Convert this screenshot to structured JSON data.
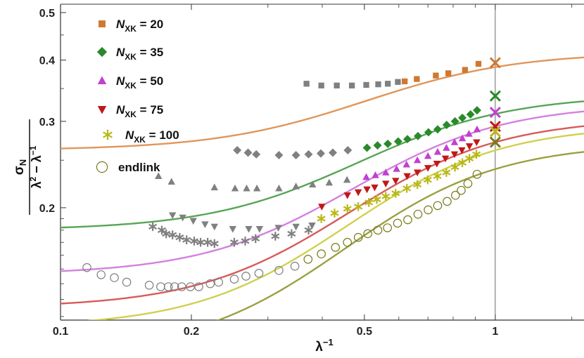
{
  "chart_data": {
    "type": "scatter",
    "xscale": "log",
    "yscale": "log",
    "xlim": [
      0.1,
      1.6
    ],
    "ylim": [
      0.118,
      0.52
    ],
    "xlabel": "λ⁻¹",
    "ylabel": {
      "numerator": "σN",
      "denominator": "λ² − λ⁻¹"
    },
    "x_ticks": [
      {
        "value": 0.1,
        "label": "0.1"
      },
      {
        "value": 0.2,
        "label": "0.2"
      },
      {
        "value": 0.5,
        "label": "0.5"
      },
      {
        "value": 1.0,
        "label": "1"
      }
    ],
    "x_minor_ticks": [
      0.3,
      0.4,
      0.6,
      0.7,
      0.8,
      0.9,
      1.5
    ],
    "y_ticks": [
      {
        "value": 0.2,
        "label": "0.2"
      },
      {
        "value": 0.3,
        "label": "0.3"
      },
      {
        "value": 0.4,
        "label": "0.4"
      },
      {
        "value": 0.5,
        "label": "0.5"
      }
    ],
    "y_minor_ticks": [
      0.12,
      0.13,
      0.14,
      0.15,
      0.16,
      0.17,
      0.18,
      0.19,
      0.25,
      0.35,
      0.45
    ],
    "vline_x": 1.0,
    "gray_color": "#808080",
    "series": [
      {
        "name": "N_XK = 20",
        "legend": {
          "prefix": "N",
          "sub": "XK",
          "suffix": " = 20"
        },
        "color": "#d07830",
        "marker": "square",
        "fit_color": "#e0965a",
        "fit": {
          "a": 0.262,
          "b": 0.415,
          "c": 2.5
        },
        "gray_points": [
          [
            0.368,
            0.358
          ],
          [
            0.398,
            0.355
          ],
          [
            0.432,
            0.355
          ],
          [
            0.468,
            0.355
          ],
          [
            0.505,
            0.356
          ],
          [
            0.538,
            0.357
          ],
          [
            0.566,
            0.358
          ],
          [
            0.597,
            0.361
          ]
        ],
        "colored_points": [
          [
            0.619,
            0.362
          ],
          [
            0.66,
            0.366
          ],
          [
            0.73,
            0.372
          ],
          [
            0.78,
            0.376
          ],
          [
            0.852,
            0.382
          ],
          [
            0.915,
            0.393
          ]
        ],
        "end_point": [
          1.0,
          0.395
        ]
      },
      {
        "name": "N_XK = 35",
        "legend": {
          "prefix": "N",
          "sub": "XK",
          "suffix": " = 35"
        },
        "color": "#2a8a2a",
        "marker": "diamond",
        "fit_color": "#56a656",
        "fit": {
          "a": 0.18,
          "b": 0.34,
          "c": 2.5
        },
        "gray_points": [
          [
            0.255,
            0.262
          ],
          [
            0.27,
            0.259
          ],
          [
            0.282,
            0.257
          ],
          [
            0.318,
            0.256
          ],
          [
            0.348,
            0.256
          ],
          [
            0.372,
            0.257
          ],
          [
            0.397,
            0.258
          ],
          [
            0.423,
            0.259
          ],
          [
            0.458,
            0.262
          ]
        ],
        "colored_points": [
          [
            0.507,
            0.265
          ],
          [
            0.536,
            0.268
          ],
          [
            0.566,
            0.27
          ],
          [
            0.598,
            0.273
          ],
          [
            0.628,
            0.276
          ],
          [
            0.664,
            0.28
          ],
          [
            0.702,
            0.285
          ],
          [
            0.737,
            0.289
          ],
          [
            0.773,
            0.295
          ],
          [
            0.808,
            0.3
          ],
          [
            0.84,
            0.305
          ],
          [
            0.877,
            0.31
          ],
          [
            0.908,
            0.316
          ]
        ],
        "end_point": [
          1.0,
          0.338
        ]
      },
      {
        "name": "N_XK = 50",
        "legend": {
          "prefix": "N",
          "sub": "XK",
          "suffix": " = 50"
        },
        "color": "#c040d0",
        "marker": "triangle-up",
        "fit_color": "#d480e0",
        "fit": {
          "a": 0.146,
          "b": 0.326,
          "c": 2.5
        },
        "gray_points": [
          [
            0.168,
            0.232
          ],
          [
            0.18,
            0.226
          ],
          [
            0.226,
            0.22
          ],
          [
            0.252,
            0.219
          ],
          [
            0.268,
            0.219
          ],
          [
            0.283,
            0.219
          ],
          [
            0.318,
            0.219
          ],
          [
            0.348,
            0.221
          ],
          [
            0.38,
            0.223
          ],
          [
            0.415,
            0.225
          ],
          [
            0.456,
            0.228
          ]
        ],
        "colored_points": [
          [
            0.505,
            0.231
          ],
          [
            0.53,
            0.233
          ],
          [
            0.56,
            0.236
          ],
          [
            0.593,
            0.24
          ],
          [
            0.625,
            0.245
          ],
          [
            0.662,
            0.25
          ],
          [
            0.7,
            0.255
          ],
          [
            0.737,
            0.26
          ],
          [
            0.772,
            0.265
          ],
          [
            0.806,
            0.272
          ],
          [
            0.84,
            0.277
          ],
          [
            0.87,
            0.283
          ],
          [
            0.908,
            0.289
          ]
        ],
        "end_point": [
          1.0,
          0.313
        ]
      },
      {
        "name": "N_XK = 75",
        "legend": {
          "prefix": "N",
          "sub": "XK",
          "suffix": " = 75"
        },
        "color": "#c01818",
        "marker": "triangle-down",
        "fit_color": "#d85a5a",
        "fit": {
          "a": 0.125,
          "b": 0.305,
          "c": 2.5
        },
        "gray_points": [
          [
            0.181,
            0.193
          ],
          [
            0.191,
            0.191
          ],
          [
            0.202,
            0.188
          ],
          [
            0.215,
            0.185
          ],
          [
            0.226,
            0.183
          ],
          [
            0.249,
            0.181
          ],
          [
            0.271,
            0.181
          ],
          [
            0.287,
            0.181
          ],
          [
            0.317,
            0.182
          ],
          [
            0.348,
            0.183
          ],
          [
            0.379,
            0.184
          ]
        ],
        "colored_points": [
          [
            0.399,
            0.201
          ],
          [
            0.457,
            0.212
          ],
          [
            0.484,
            0.215
          ],
          [
            0.507,
            0.218
          ],
          [
            0.528,
            0.22
          ],
          [
            0.56,
            0.224
          ],
          [
            0.59,
            0.227
          ],
          [
            0.627,
            0.232
          ],
          [
            0.662,
            0.236
          ],
          [
            0.7,
            0.241
          ],
          [
            0.734,
            0.246
          ],
          [
            0.768,
            0.252
          ],
          [
            0.806,
            0.257
          ],
          [
            0.838,
            0.262
          ],
          [
            0.872,
            0.267
          ],
          [
            0.906,
            0.272
          ]
        ],
        "end_point": [
          1.0,
          0.293
        ]
      },
      {
        "name": "N_XK = 100",
        "legend": {
          "prefix": "N",
          "sub": "XK",
          "suffix": " = 100"
        },
        "color": "#b8b818",
        "marker": "star",
        "fit_color": "#d0d050",
        "fit": {
          "a": 0.114,
          "b": 0.295,
          "c": 2.5
        },
        "gray_points": [
          [
            0.163,
            0.183
          ],
          [
            0.171,
            0.18
          ],
          [
            0.175,
            0.177
          ],
          [
            0.181,
            0.176
          ],
          [
            0.188,
            0.174
          ],
          [
            0.195,
            0.172
          ],
          [
            0.203,
            0.171
          ],
          [
            0.21,
            0.17
          ],
          [
            0.218,
            0.17
          ],
          [
            0.226,
            0.169
          ],
          [
            0.251,
            0.17
          ],
          [
            0.266,
            0.171
          ],
          [
            0.281,
            0.173
          ],
          [
            0.312,
            0.175
          ],
          [
            0.34,
            0.177
          ],
          [
            0.372,
            0.18
          ]
        ],
        "colored_points": [
          [
            0.398,
            0.19
          ],
          [
            0.427,
            0.195
          ],
          [
            0.457,
            0.199
          ],
          [
            0.484,
            0.201
          ],
          [
            0.512,
            0.205
          ],
          [
            0.534,
            0.208
          ],
          [
            0.56,
            0.211
          ],
          [
            0.59,
            0.214
          ],
          [
            0.626,
            0.219
          ],
          [
            0.662,
            0.223
          ],
          [
            0.699,
            0.228
          ],
          [
            0.736,
            0.232
          ],
          [
            0.772,
            0.236
          ],
          [
            0.808,
            0.242
          ],
          [
            0.84,
            0.247
          ],
          [
            0.872,
            0.252
          ],
          [
            0.905,
            0.257
          ]
        ],
        "end_point": [
          1.0,
          0.286
        ]
      },
      {
        "name": "endlink",
        "legend": {
          "prefix": "",
          "sub": "",
          "suffix": "endlink"
        },
        "color": "#7a7a1a",
        "marker": "circle-open",
        "fit_color": "#9aa040",
        "fit": {
          "a": 0.1005,
          "b": 0.271,
          "c": 2.5
        },
        "gray_points": [
          [
            0.115,
            0.151
          ],
          [
            0.124,
            0.146
          ],
          [
            0.133,
            0.144
          ],
          [
            0.142,
            0.141
          ],
          [
            0.16,
            0.139
          ],
          [
            0.17,
            0.138
          ],
          [
            0.177,
            0.138
          ],
          [
            0.183,
            0.138
          ],
          [
            0.19,
            0.138
          ],
          [
            0.199,
            0.138
          ],
          [
            0.208,
            0.138
          ],
          [
            0.221,
            0.14
          ],
          [
            0.231,
            0.141
          ],
          [
            0.251,
            0.143
          ],
          [
            0.267,
            0.145
          ],
          [
            0.286,
            0.147
          ],
          [
            0.318,
            0.149
          ],
          [
            0.346,
            0.152
          ]
        ],
        "colored_points": [
          [
            0.371,
            0.157
          ],
          [
            0.398,
            0.161
          ],
          [
            0.429,
            0.166
          ],
          [
            0.457,
            0.17
          ],
          [
            0.484,
            0.174
          ],
          [
            0.509,
            0.177
          ],
          [
            0.537,
            0.18
          ],
          [
            0.565,
            0.182
          ],
          [
            0.596,
            0.186
          ],
          [
            0.629,
            0.189
          ],
          [
            0.664,
            0.194
          ],
          [
            0.701,
            0.198
          ],
          [
            0.737,
            0.202
          ],
          [
            0.775,
            0.206
          ],
          [
            0.81,
            0.212
          ],
          [
            0.835,
            0.217
          ],
          [
            0.865,
            0.224
          ],
          [
            0.908,
            0.234
          ]
        ],
        "end_point": [
          1.0,
          0.272
        ]
      }
    ]
  }
}
